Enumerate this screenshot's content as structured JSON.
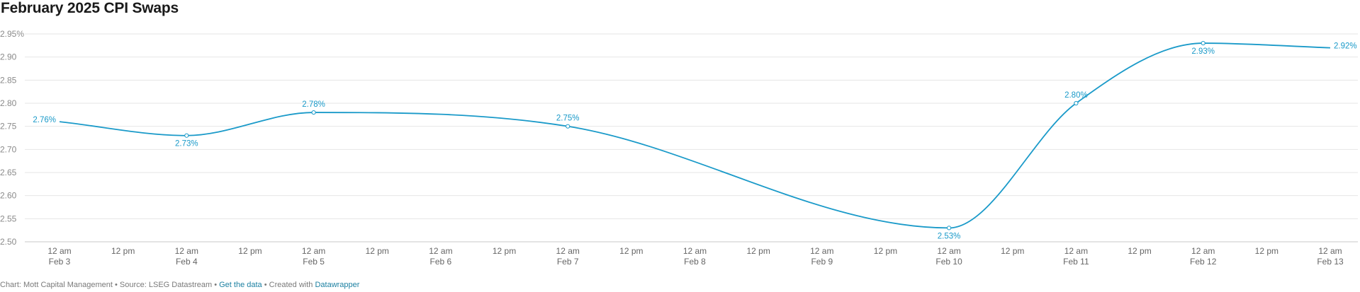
{
  "header": {
    "title": "February 2025 CPI Swaps"
  },
  "chart_data": {
    "type": "line",
    "title": "February 2025 CPI Swaps",
    "xlabel": "",
    "ylabel": "",
    "ylim": [
      2.5,
      2.95
    ],
    "yticks": [
      2.5,
      2.55,
      2.6,
      2.65,
      2.7,
      2.75,
      2.8,
      2.85,
      2.9,
      2.95
    ],
    "ytick_labels": [
      "2.50",
      "2.55",
      "2.60",
      "2.65",
      "2.70",
      "2.75",
      "2.80",
      "2.85",
      "2.90",
      "2.95%"
    ],
    "xtick_labels": [
      [
        "12 am",
        "Feb 3"
      ],
      [
        "12 pm",
        ""
      ],
      [
        "12 am",
        "Feb 4"
      ],
      [
        "12 pm",
        ""
      ],
      [
        "12 am",
        "Feb 5"
      ],
      [
        "12 pm",
        ""
      ],
      [
        "12 am",
        "Feb 6"
      ],
      [
        "12 pm",
        ""
      ],
      [
        "12 am",
        "Feb 7"
      ],
      [
        "12 pm",
        ""
      ],
      [
        "12 am",
        "Feb 8"
      ],
      [
        "12 pm",
        ""
      ],
      [
        "12 am",
        "Feb 9"
      ],
      [
        "12 pm",
        ""
      ],
      [
        "12 am",
        "Feb 10"
      ],
      [
        "12 pm",
        ""
      ],
      [
        "12 am",
        "Feb 11"
      ],
      [
        "12 pm",
        ""
      ],
      [
        "12 am",
        "Feb 12"
      ],
      [
        "12 pm",
        ""
      ],
      [
        "12 am",
        "Feb 13"
      ]
    ],
    "grid": true,
    "line_color": "#1a9ac9",
    "series": [
      {
        "name": "",
        "points": [
          {
            "x": "Feb 3",
            "y": 2.76,
            "label": "2.76%",
            "marker": false
          },
          {
            "x": "Feb 4",
            "y": 2.73,
            "label": "2.73%",
            "marker": true
          },
          {
            "x": "Feb 5",
            "y": 2.78,
            "label": "2.78%",
            "marker": true
          },
          {
            "x": "Feb 7",
            "y": 2.75,
            "label": "2.75%",
            "marker": true
          },
          {
            "x": "Feb 10",
            "y": 2.53,
            "label": "2.53%",
            "marker": true
          },
          {
            "x": "Feb 11",
            "y": 2.8,
            "label": "2.80%",
            "marker": true
          },
          {
            "x": "Feb 12",
            "y": 2.93,
            "label": "2.93%",
            "marker": true
          },
          {
            "x": "Feb 13",
            "y": 2.92,
            "label": "2.92%",
            "marker": false
          }
        ]
      }
    ]
  },
  "footer": {
    "credit": "Chart: Mott Capital Management • Source: LSEG Datastream •",
    "get_data": "Get the data",
    "created_with": "• Created with",
    "datawrapper": "Datawrapper",
    "link_color": "#1d81a2"
  }
}
